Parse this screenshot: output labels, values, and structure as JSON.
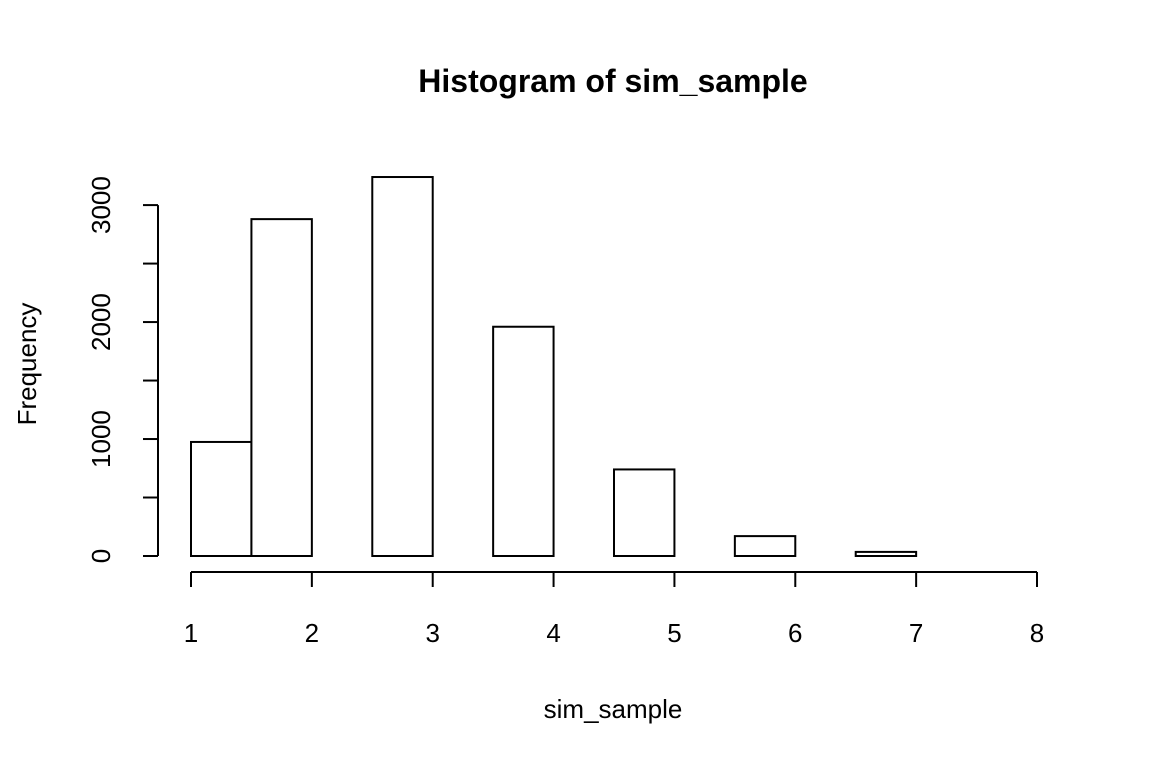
{
  "chart_data": {
    "type": "bar",
    "title": "Histogram of sim_sample",
    "xlabel": "sim_sample",
    "ylabel": "Frequency",
    "bins": [
      {
        "start": 1.0,
        "end": 1.5,
        "count": 975
      },
      {
        "start": 1.5,
        "end": 2.0,
        "count": 2880
      },
      {
        "start": 2.0,
        "end": 2.5,
        "count": 0
      },
      {
        "start": 2.5,
        "end": 3.0,
        "count": 3240
      },
      {
        "start": 3.0,
        "end": 3.5,
        "count": 0
      },
      {
        "start": 3.5,
        "end": 4.0,
        "count": 1960
      },
      {
        "start": 4.0,
        "end": 4.5,
        "count": 0
      },
      {
        "start": 4.5,
        "end": 5.0,
        "count": 740
      },
      {
        "start": 5.0,
        "end": 5.5,
        "count": 0
      },
      {
        "start": 5.5,
        "end": 6.0,
        "count": 170
      },
      {
        "start": 6.0,
        "end": 6.5,
        "count": 0
      },
      {
        "start": 6.5,
        "end": 7.0,
        "count": 35
      },
      {
        "start": 7.0,
        "end": 7.5,
        "count": 0
      },
      {
        "start": 7.5,
        "end": 8.0,
        "count": 0
      }
    ],
    "xlim": [
      1,
      8
    ],
    "ylim": [
      0,
      3300
    ],
    "x_ticks": [
      1,
      2,
      3,
      4,
      5,
      6,
      7,
      8
    ],
    "y_ticks": [
      0,
      500,
      1000,
      1500,
      2000,
      2500,
      3000
    ],
    "y_tick_labels": [
      "0",
      "",
      "1000",
      "",
      "2000",
      "",
      "3000"
    ],
    "grid": false,
    "legend": "none",
    "bar_fill": "#ffffff",
    "bar_stroke": "#000000"
  }
}
